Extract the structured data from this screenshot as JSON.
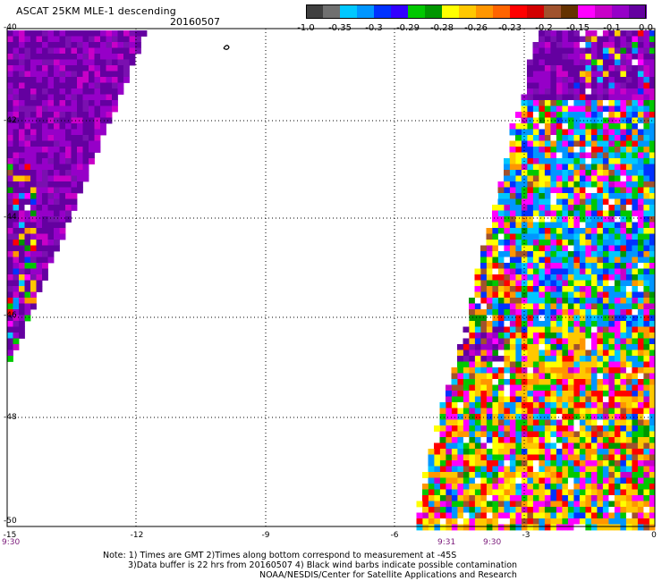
{
  "header": {
    "title": "ASCAT 25KM MLE-1 descending",
    "date": "20160507"
  },
  "colorbar": {
    "colors": [
      "#404040",
      "#707070",
      "#00c8ff",
      "#0096ff",
      "#0032ff",
      "#3200ff",
      "#00c800",
      "#009600",
      "#ffff00",
      "#ffc800",
      "#ff9600",
      "#ff6400",
      "#ff0000",
      "#d20000",
      "#a0522d",
      "#643200",
      "#ff00ff",
      "#c800c8",
      "#9600c8",
      "#6400a0"
    ],
    "labels": [
      "-1.0",
      "-0.35",
      "-0.3",
      "-0.29",
      "-0.28",
      "-0.26",
      "-0.23",
      "-0.2",
      "-0.15",
      "-0.1",
      "0.0"
    ]
  },
  "axes": {
    "lat_labels": [
      "-40",
      "-42",
      "-44",
      "-46",
      "-48",
      "-50"
    ],
    "lon_labels": [
      "-15",
      "-12",
      "-9",
      "-6",
      "-3",
      "0"
    ]
  },
  "times": {
    "left": "9:30",
    "mid1": "9:31",
    "mid2": "9:30"
  },
  "notes": {
    "line1": "Note: 1) Times are GMT 2)Times along bottom correspond to measurement at -45S",
    "line2": "3)Data buffer is 22 hrs from 20160507 4) Black wind barbs indicate possible contamination",
    "line3": "NOAA/NESDIS/Center for Satellite Applications and Research"
  }
}
